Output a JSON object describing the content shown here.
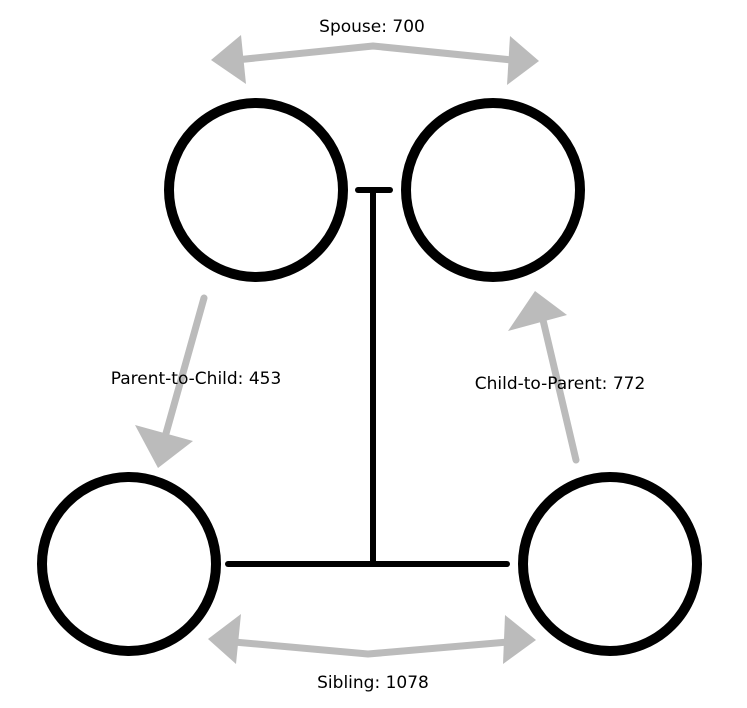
{
  "diagram": {
    "relations": {
      "spouse": {
        "label": "Spouse: 700"
      },
      "parent_to_child": {
        "label": "Parent-to-Child: 453"
      },
      "child_to_parent": {
        "label": "Child-to-Parent: 772"
      },
      "sibling": {
        "label": "Sibling: 1078"
      }
    }
  },
  "colors": {
    "node_stroke": "#000000",
    "connector": "#000000",
    "arrow": "#bbbbbb",
    "background": "#ffffff"
  }
}
